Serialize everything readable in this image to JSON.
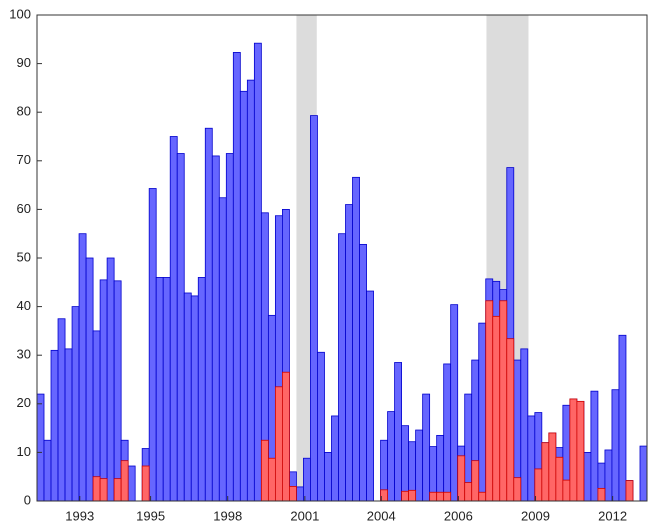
{
  "chart_data": {
    "type": "bar",
    "overlap": true,
    "x": [
      0,
      1,
      2,
      3,
      4,
      5,
      6,
      7,
      8,
      9,
      10,
      11,
      12,
      13,
      14,
      15,
      16,
      17,
      18,
      19,
      20,
      21,
      22,
      23,
      24,
      25,
      26,
      27,
      28,
      29,
      30,
      31,
      32,
      33,
      34,
      35,
      36,
      37,
      38,
      39,
      40,
      41,
      42,
      43,
      44,
      45,
      46,
      47,
      48,
      49,
      50,
      51,
      52,
      53,
      54,
      55,
      56,
      57,
      58,
      59,
      60,
      61,
      62,
      63,
      64,
      65,
      66,
      67,
      68,
      69,
      70,
      71,
      72,
      73,
      74,
      75,
      76,
      77,
      78,
      79,
      80,
      81,
      82,
      83,
      84,
      85,
      86
    ],
    "series": [
      {
        "color": "#6666ff",
        "edge": "#0000cc",
        "values": [
          22,
          12.5,
          31,
          37.5,
          31.3,
          40,
          55,
          50,
          35,
          45.5,
          50,
          45.3,
          12.5,
          7.2,
          0,
          10.8,
          64.3,
          46,
          46,
          75,
          71.5,
          42.8,
          42.2,
          46,
          76.7,
          71,
          62.4,
          71.5,
          92.3,
          84.3,
          86.6,
          94.2,
          59.3,
          38.2,
          58.7,
          60,
          6,
          2.9,
          8.8,
          79.3,
          30.6,
          10,
          17.5,
          55,
          61,
          66.6,
          52.8,
          43.2,
          0,
          12.5,
          18.4,
          28.5,
          15.5,
          12.2,
          14.6,
          22,
          11.2,
          13.5,
          28.2,
          40.4,
          11.3,
          22,
          29,
          36.6,
          45.7,
          45.2,
          43.5,
          68.6,
          29,
          31.3,
          17.5,
          18.2,
          12,
          14,
          11,
          19.7,
          21,
          20.5,
          10,
          22.6,
          7.8,
          10.5,
          22.9,
          34.1,
          4.2,
          0,
          11.3
        ]
      },
      {
        "color": "#ff6666",
        "edge": "#cc0000",
        "values": [
          0,
          0,
          0,
          0,
          0,
          0,
          0,
          0,
          5,
          4.6,
          0,
          4.6,
          8.3,
          0,
          0,
          7.2,
          0,
          0,
          0,
          0,
          0,
          0,
          0,
          0,
          0,
          0,
          0,
          0,
          0,
          0,
          0,
          0,
          12.5,
          8.8,
          23.5,
          26.5,
          3,
          0,
          0,
          0,
          0,
          0,
          0,
          0,
          0,
          0,
          0,
          0,
          0,
          2.3,
          0,
          0,
          2,
          2.2,
          0,
          0,
          1.8,
          1.8,
          1.8,
          0,
          9.3,
          3.8,
          8.3,
          1.8,
          41.2,
          38,
          41.2,
          33.4,
          4.8,
          0,
          0,
          6.6,
          12,
          14,
          9,
          4.3,
          21,
          20.5,
          0,
          0,
          2.6,
          0,
          0,
          0,
          4.2,
          0,
          0
        ]
      }
    ],
    "shaded": [
      [
        37,
        39.9
      ],
      [
        64.1,
        70.1
      ]
    ],
    "shade_color": "#dcdcdc",
    "xlim": [
      0,
      87
    ],
    "xticks": [
      {
        "value": 6.1,
        "label": "1993"
      },
      {
        "value": 16.2,
        "label": "1995"
      },
      {
        "value": 27.2,
        "label": "1998"
      },
      {
        "value": 38.2,
        "label": "2001"
      },
      {
        "value": 49.1,
        "label": "2004"
      },
      {
        "value": 60.1,
        "label": "2006"
      },
      {
        "value": 71.1,
        "label": "2009"
      },
      {
        "value": 82.1,
        "label": "2012"
      }
    ],
    "ylim": [
      0,
      100
    ],
    "yticks": [
      0,
      10,
      20,
      30,
      40,
      50,
      60,
      70,
      80,
      90,
      100
    ]
  }
}
